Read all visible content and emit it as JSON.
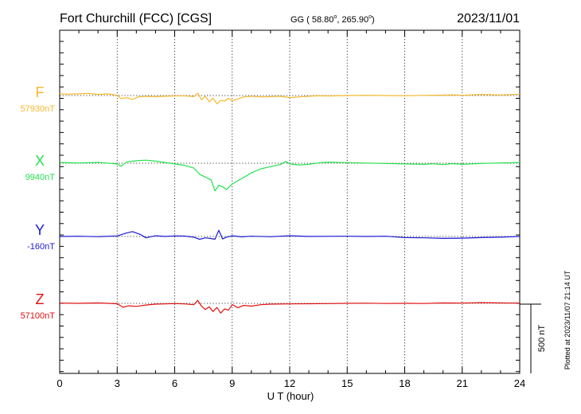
{
  "header": {
    "station": "Fort Churchill (FCC)  [CGS]",
    "coords_prefix": "GG ( 58.80",
    "coords_mid": ", 265.90",
    "coords_suffix": ")",
    "degree_mark": "o",
    "date": "2023/11/01"
  },
  "footer": {
    "plotted": "Plotted at 2023/11/07 21:14 UT",
    "scale_label": "500 nT"
  },
  "chart_data": {
    "type": "line",
    "xlabel": "U T (hour)",
    "xlim": [
      0,
      24
    ],
    "xticks": [
      0,
      3,
      6,
      9,
      12,
      15,
      18,
      21,
      24
    ],
    "xtick_labels": [
      "0",
      "3",
      "6",
      "9",
      "12",
      "15",
      "18",
      "21",
      "24"
    ],
    "scale_bar_nT": 500,
    "grid": "dotted",
    "series": [
      {
        "name": "F",
        "baseline_label": "57930nT",
        "baseline_nT": 57930,
        "color": "#f5b82e",
        "points": [
          [
            0,
            12
          ],
          [
            0.5,
            10
          ],
          [
            1,
            12
          ],
          [
            1.5,
            15
          ],
          [
            2,
            8
          ],
          [
            2.5,
            12
          ],
          [
            3,
            2
          ],
          [
            3.2,
            -22
          ],
          [
            3.5,
            -15
          ],
          [
            3.8,
            -28
          ],
          [
            4.1,
            -10
          ],
          [
            4.5,
            -6
          ],
          [
            5,
            -8
          ],
          [
            5.5,
            -5
          ],
          [
            6,
            -3
          ],
          [
            6.5,
            -2
          ],
          [
            7,
            -8
          ],
          [
            7.2,
            18
          ],
          [
            7.4,
            -30
          ],
          [
            7.6,
            -5
          ],
          [
            7.8,
            -45
          ],
          [
            8,
            -20
          ],
          [
            8.2,
            -60
          ],
          [
            8.4,
            -35
          ],
          [
            8.6,
            -40
          ],
          [
            8.8,
            -20
          ],
          [
            9,
            -38
          ],
          [
            9.3,
            -25
          ],
          [
            9.6,
            -10
          ],
          [
            10,
            -5
          ],
          [
            10.5,
            -10
          ],
          [
            11,
            -8
          ],
          [
            11.5,
            -5
          ],
          [
            12,
            -15
          ],
          [
            12.5,
            -10
          ],
          [
            13,
            -5
          ],
          [
            13.5,
            -2
          ],
          [
            14,
            -3
          ],
          [
            15,
            0
          ],
          [
            16,
            2
          ],
          [
            17,
            0
          ],
          [
            18,
            -2
          ],
          [
            19,
            1
          ],
          [
            20,
            3
          ],
          [
            20.5,
            5
          ],
          [
            21,
            2
          ],
          [
            22,
            8
          ],
          [
            23,
            4
          ],
          [
            24,
            10
          ]
        ]
      },
      {
        "name": "X",
        "baseline_label": "9940nT",
        "baseline_nT": 9940,
        "color": "#22e24d",
        "points": [
          [
            0,
            5
          ],
          [
            1,
            2
          ],
          [
            2,
            6
          ],
          [
            3,
            -5
          ],
          [
            3.2,
            -22
          ],
          [
            3.5,
            10
          ],
          [
            4,
            18
          ],
          [
            4.5,
            22
          ],
          [
            5,
            15
          ],
          [
            5.5,
            5
          ],
          [
            6,
            -5
          ],
          [
            6.5,
            -15
          ],
          [
            7,
            -35
          ],
          [
            7.3,
            -80
          ],
          [
            7.6,
            -100
          ],
          [
            7.9,
            -120
          ],
          [
            8.1,
            -200
          ],
          [
            8.3,
            -160
          ],
          [
            8.5,
            -170
          ],
          [
            8.7,
            -190
          ],
          [
            9,
            -150
          ],
          [
            9.5,
            -110
          ],
          [
            10,
            -70
          ],
          [
            10.5,
            -40
          ],
          [
            11,
            -25
          ],
          [
            11.5,
            -10
          ],
          [
            11.8,
            12
          ],
          [
            12,
            -5
          ],
          [
            12.5,
            -12
          ],
          [
            13,
            -8
          ],
          [
            13.5,
            2
          ],
          [
            14,
            8
          ],
          [
            15,
            4
          ],
          [
            16,
            1
          ],
          [
            17,
            -2
          ],
          [
            18,
            -5
          ],
          [
            19,
            -8
          ],
          [
            19.5,
            -4
          ],
          [
            20,
            -10
          ],
          [
            20.5,
            -3
          ],
          [
            21,
            -8
          ],
          [
            22,
            -2
          ],
          [
            23,
            2
          ],
          [
            24,
            5
          ]
        ]
      },
      {
        "name": "Y",
        "baseline_label": "-160nT",
        "baseline_nT": -160,
        "color": "#1a1ad6",
        "points": [
          [
            0,
            0
          ],
          [
            1,
            2
          ],
          [
            2,
            -2
          ],
          [
            3,
            4
          ],
          [
            3.5,
            25
          ],
          [
            3.8,
            35
          ],
          [
            4.2,
            15
          ],
          [
            4.5,
            -10
          ],
          [
            5,
            5
          ],
          [
            5.5,
            0
          ],
          [
            6,
            4
          ],
          [
            6.5,
            3
          ],
          [
            7,
            -5
          ],
          [
            7.3,
            -20
          ],
          [
            7.6,
            -10
          ],
          [
            7.9,
            -15
          ],
          [
            8.1,
            -20
          ],
          [
            8.3,
            45
          ],
          [
            8.5,
            -18
          ],
          [
            8.7,
            -5
          ],
          [
            9,
            5
          ],
          [
            9.5,
            -3
          ],
          [
            10,
            2
          ],
          [
            11,
            -2
          ],
          [
            12,
            5
          ],
          [
            13,
            0
          ],
          [
            14,
            1
          ],
          [
            15,
            2
          ],
          [
            16,
            0
          ],
          [
            17,
            2
          ],
          [
            18,
            -8
          ],
          [
            19,
            -10
          ],
          [
            20,
            -14
          ],
          [
            21,
            -12
          ],
          [
            22,
            -8
          ],
          [
            23,
            -5
          ],
          [
            24,
            0
          ]
        ]
      },
      {
        "name": "Z",
        "baseline_label": "57100nT",
        "baseline_nT": 57100,
        "color": "#e01010",
        "points": [
          [
            0,
            2
          ],
          [
            1,
            0
          ],
          [
            2,
            3
          ],
          [
            3,
            -3
          ],
          [
            3.3,
            -28
          ],
          [
            3.6,
            -18
          ],
          [
            4,
            -22
          ],
          [
            4.5,
            -12
          ],
          [
            5,
            -6
          ],
          [
            5.5,
            -4
          ],
          [
            6,
            -2
          ],
          [
            6.5,
            -4
          ],
          [
            7,
            -10
          ],
          [
            7.2,
            22
          ],
          [
            7.4,
            -20
          ],
          [
            7.6,
            -45
          ],
          [
            7.8,
            -25
          ],
          [
            8,
            -60
          ],
          [
            8.2,
            -30
          ],
          [
            8.4,
            -70
          ],
          [
            8.6,
            -40
          ],
          [
            8.8,
            -50
          ],
          [
            9,
            -10
          ],
          [
            9.3,
            -32
          ],
          [
            9.6,
            -15
          ],
          [
            10,
            -20
          ],
          [
            10.5,
            -10
          ],
          [
            11,
            -6
          ],
          [
            12,
            -4
          ],
          [
            13,
            -3
          ],
          [
            14,
            -2
          ],
          [
            15,
            0
          ],
          [
            16,
            1
          ],
          [
            17,
            -1
          ],
          [
            18,
            0
          ],
          [
            19,
            -1
          ],
          [
            20,
            3
          ],
          [
            21,
            2
          ],
          [
            22,
            5
          ],
          [
            23,
            3
          ],
          [
            24,
            2
          ]
        ]
      }
    ]
  }
}
